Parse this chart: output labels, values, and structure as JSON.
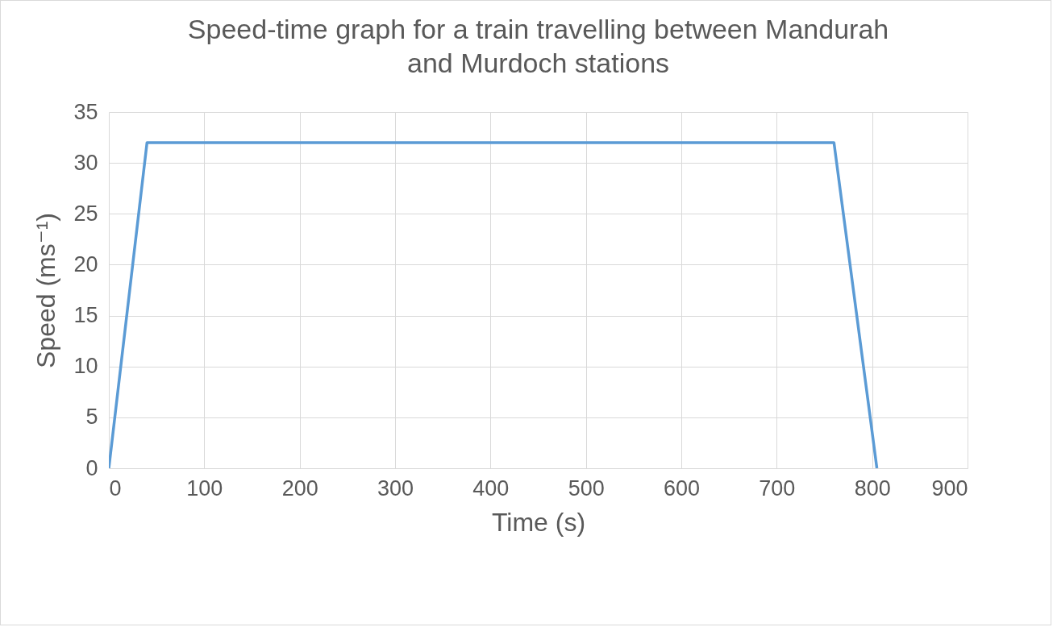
{
  "chart_data": {
    "type": "line",
    "title": "Speed-time graph for a train travelling between Mandurah and Murdoch stations",
    "xlabel": "Time (s)",
    "ylabel": "Speed (ms⁻¹)",
    "x": [
      0,
      40,
      760,
      805
    ],
    "series": [
      {
        "color": "#5b9bd5",
        "values": [
          0,
          32,
          32,
          0
        ]
      }
    ],
    "xlim": [
      0,
      900
    ],
    "xticks": [
      0,
      100,
      200,
      300,
      400,
      500,
      600,
      700,
      800,
      900
    ],
    "ylim": [
      0,
      35
    ],
    "yticks": [
      0,
      5,
      10,
      15,
      20,
      25,
      30,
      35
    ],
    "grid": true,
    "marker": "none",
    "line_style": "solid"
  }
}
